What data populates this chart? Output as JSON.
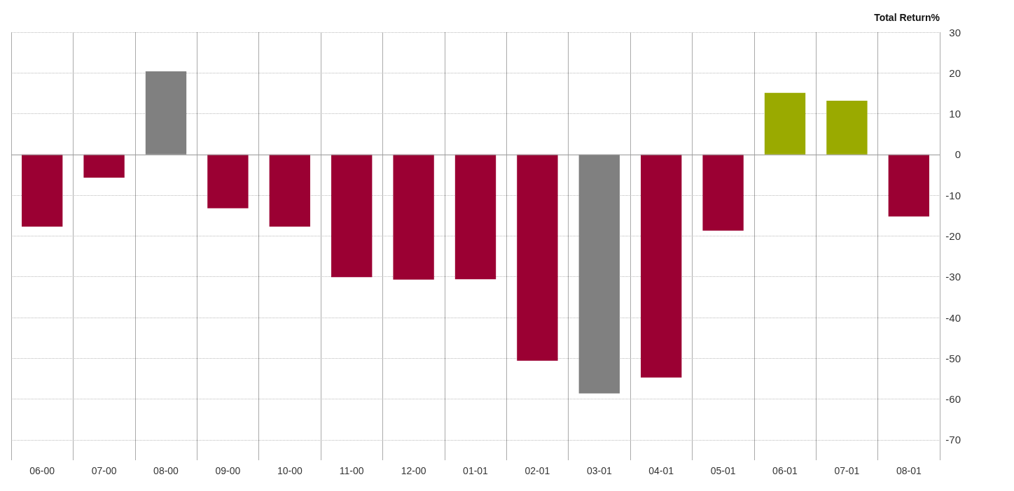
{
  "chart_data": {
    "type": "bar",
    "ylabel": "Total Return%",
    "categories": [
      "06-00",
      "07-00",
      "08-00",
      "09-00",
      "10-00",
      "11-00",
      "12-00",
      "01-01",
      "02-01",
      "03-01",
      "04-01",
      "05-01",
      "06-01",
      "07-01",
      "08-01"
    ],
    "values": [
      -17.7,
      -5.7,
      20.4,
      -13.2,
      -17.7,
      -30.1,
      -30.7,
      -30.6,
      -50.6,
      -58.6,
      -54.7,
      -18.7,
      15.1,
      13.2,
      -15.2
    ],
    "colors": [
      "#9b0033",
      "#9b0033",
      "#808080",
      "#9b0033",
      "#9b0033",
      "#9b0033",
      "#9b0033",
      "#9b0033",
      "#9b0033",
      "#808080",
      "#9b0033",
      "#9b0033",
      "#9aaa00",
      "#9aaa00",
      "#9b0033"
    ],
    "ylim": [
      -75,
      30
    ],
    "yticks": [
      -70,
      -60,
      -50,
      -40,
      -30,
      -20,
      -10,
      0,
      10,
      20,
      30
    ],
    "grid": true
  }
}
